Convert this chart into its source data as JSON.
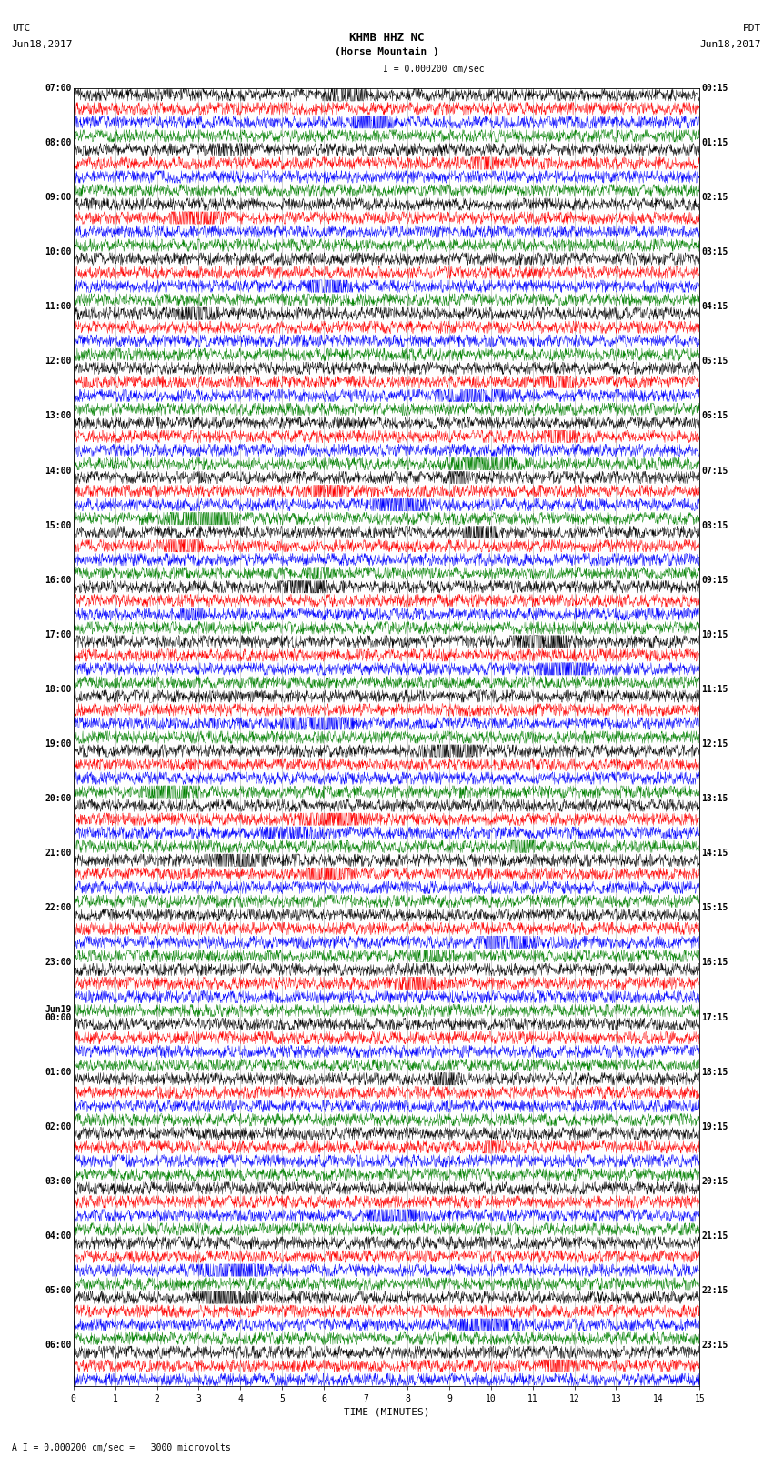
{
  "title_line1": "KHMB HHZ NC",
  "title_line2": "(Horse Mountain )",
  "scale_label": "I = 0.000200 cm/sec",
  "footer_label": "A I = 0.000200 cm/sec =   3000 microvolts",
  "utc_label": "UTC",
  "utc_date": "Jun18,2017",
  "pdt_label": "PDT",
  "pdt_date": "Jun18,2017",
  "xlabel": "TIME (MINUTES)",
  "xlim": [
    0,
    15
  ],
  "xticks": [
    0,
    1,
    2,
    3,
    4,
    5,
    6,
    7,
    8,
    9,
    10,
    11,
    12,
    13,
    14,
    15
  ],
  "colors": [
    "black",
    "red",
    "blue",
    "green"
  ],
  "left_labels": [
    [
      "07:00",
      0
    ],
    [
      "08:00",
      4
    ],
    [
      "09:00",
      8
    ],
    [
      "10:00",
      12
    ],
    [
      "11:00",
      16
    ],
    [
      "12:00",
      20
    ],
    [
      "13:00",
      24
    ],
    [
      "14:00",
      28
    ],
    [
      "15:00",
      32
    ],
    [
      "16:00",
      36
    ],
    [
      "17:00",
      40
    ],
    [
      "18:00",
      44
    ],
    [
      "19:00",
      48
    ],
    [
      "20:00",
      52
    ],
    [
      "21:00",
      56
    ],
    [
      "22:00",
      60
    ],
    [
      "23:00",
      64
    ],
    [
      "Jun19",
      68
    ],
    [
      "00:00",
      68
    ],
    [
      "01:00",
      72
    ],
    [
      "02:00",
      76
    ],
    [
      "03:00",
      80
    ],
    [
      "04:00",
      84
    ],
    [
      "05:00",
      88
    ],
    [
      "06:00",
      92
    ]
  ],
  "right_labels": [
    [
      "00:15",
      0
    ],
    [
      "01:15",
      4
    ],
    [
      "02:15",
      8
    ],
    [
      "03:15",
      12
    ],
    [
      "04:15",
      16
    ],
    [
      "05:15",
      20
    ],
    [
      "06:15",
      24
    ],
    [
      "07:15",
      28
    ],
    [
      "08:15",
      32
    ],
    [
      "09:15",
      36
    ],
    [
      "10:15",
      40
    ],
    [
      "11:15",
      44
    ],
    [
      "12:15",
      48
    ],
    [
      "13:15",
      52
    ],
    [
      "14:15",
      56
    ],
    [
      "15:15",
      60
    ],
    [
      "16:15",
      64
    ],
    [
      "17:15",
      68
    ],
    [
      "18:15",
      72
    ],
    [
      "19:15",
      76
    ],
    [
      "20:15",
      80
    ],
    [
      "21:15",
      84
    ],
    [
      "22:15",
      88
    ],
    [
      "23:15",
      92
    ]
  ],
  "n_rows": 95,
  "noise_seed": 42,
  "amplitude_scale": 0.006,
  "fig_width": 8.5,
  "fig_height": 16.13,
  "dpi": 100,
  "background_color": "white",
  "trace_lw": 0.3,
  "fontsize_title": 9,
  "fontsize_labels": 8,
  "fontsize_ticks": 7,
  "fontsize_footer": 7,
  "grid_color": "#aaaaaa",
  "grid_lw": 0.4
}
